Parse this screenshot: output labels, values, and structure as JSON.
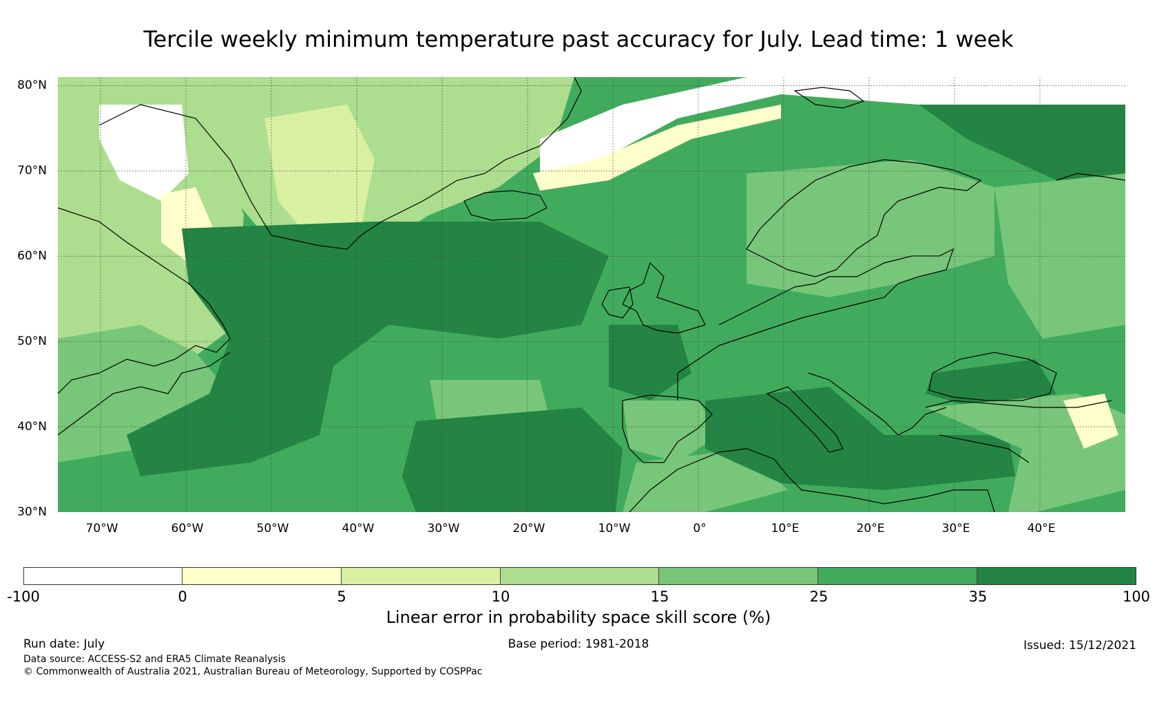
{
  "title": "Tercile weekly minimum temperature past accuracy for July. Lead time: 1 week",
  "map": {
    "region": "North Atlantic and Europe",
    "lat_labels": [
      "80°N",
      "70°N",
      "60°N",
      "50°N",
      "40°N",
      "30°N"
    ],
    "lon_labels": [
      "70°W",
      "60°W",
      "50°W",
      "40°W",
      "30°W",
      "20°W",
      "10°W",
      "0°",
      "10°E",
      "20°E",
      "30°E",
      "40°E"
    ],
    "lat_range": [
      30,
      81
    ],
    "lon_range": [
      -75,
      50
    ]
  },
  "colorbar": {
    "title": "Linear error in probability space skill score (%)",
    "boundaries": [
      "-100",
      "0",
      "5",
      "10",
      "15",
      "25",
      "35",
      "100"
    ],
    "colors": [
      "#ffffff",
      "#ffffcc",
      "#d9f0a3",
      "#addd8e",
      "#78c679",
      "#41ab5d",
      "#238443"
    ]
  },
  "footer": {
    "run_date": "Run date: July",
    "base_period": "Base period: 1981-2018",
    "issued": "Issued: 15/12/2021",
    "data_source": "Data source: ACCESS-S2 and ERA5 Climate Reanalysis",
    "copyright": "© Commonwealth of Australia 2021, Australian Bureau of Meteorology, Supported by COSPPac"
  }
}
